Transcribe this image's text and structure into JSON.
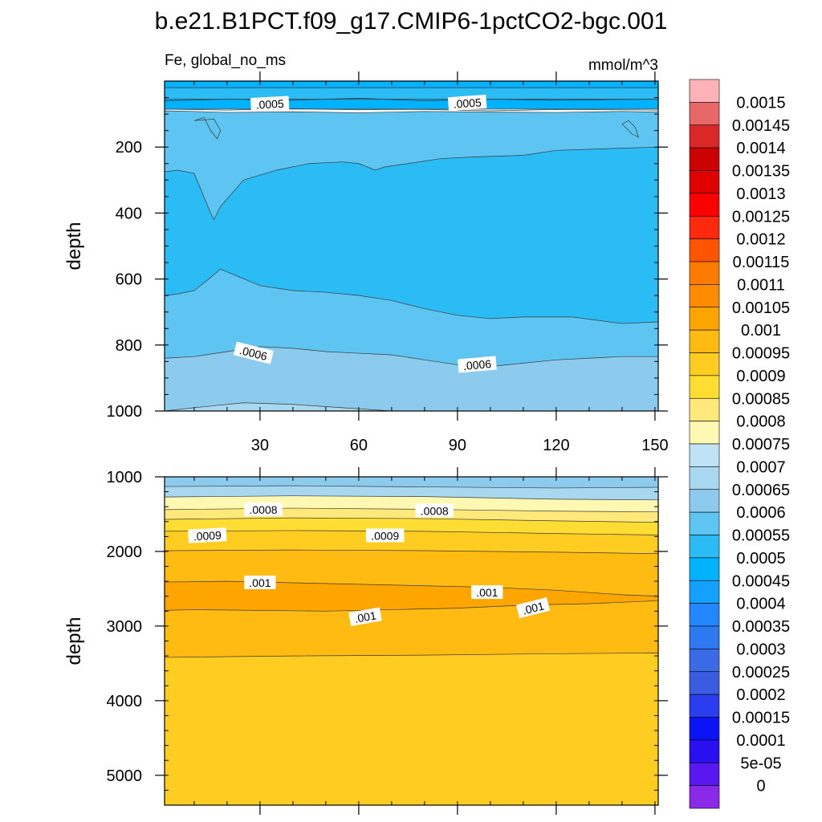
{
  "title": "b.e21.B1PCT.f09_g17.CMIP6-1pctCO2-bgc.001",
  "colors": {
    "band_0": "#9ecae1",
    "band_00075": "#fff8b3",
    "band_0008": "#ffe97a",
    "band_00085": "#ffdd33",
    "band_0009": "#ffcc22",
    "band_00095": "#ffbb11",
    "band_0001": "#ffa500",
    "band_00055": "#5ec4f2",
    "band_0005": "#2bbcf6",
    "band_00045": "#00b2ff",
    "band_00065": "#8ccbee",
    "band_0007": "#a8d8f0",
    "line": "#3a3a3a"
  },
  "chart_data": [
    {
      "type": "heatmap",
      "name": "upper-panel",
      "left_label": "Fe, global_no_ms",
      "right_label": "mmol/m^3",
      "ylabel": "depth",
      "xlabel": "",
      "xlim": [
        1,
        151
      ],
      "ylim": [
        1000,
        0
      ],
      "x_ticks": [
        30,
        60,
        90,
        120,
        150
      ],
      "x_tick_labels": [
        "30",
        "60",
        "90",
        "120",
        "150"
      ],
      "y_ticks": [
        200,
        400,
        600,
        800,
        1000
      ],
      "y_tick_labels": [
        "200",
        "400",
        "600",
        "800",
        "1000"
      ],
      "x_minor_step": 10,
      "y_minor_step": 50,
      "bands": [
        {
          "color": "band_00045",
          "top": [
            [
              1,
              0
            ],
            [
              151,
              0
            ]
          ],
          "bottom": [
            [
              1,
              85
            ],
            [
              151,
              85
            ]
          ]
        },
        {
          "color": "band_0005",
          "top": [
            [
              1,
              20
            ],
            [
              151,
              20
            ]
          ],
          "bottom": [
            [
              1,
              55
            ],
            [
              151,
              55
            ]
          ]
        },
        {
          "color": "band_00055",
          "top": [
            [
              1,
              90
            ],
            [
              10,
              92
            ],
            [
              20,
              95
            ],
            [
              40,
              93
            ],
            [
              60,
              96
            ],
            [
              80,
              92
            ],
            [
              100,
              94
            ],
            [
              120,
              95
            ],
            [
              140,
              92
            ],
            [
              151,
              94
            ]
          ],
          "bottom": [
            [
              1,
              1000
            ],
            [
              151,
              1000
            ]
          ]
        },
        {
          "color": "band_0005",
          "top": [
            [
              1,
              275
            ],
            [
              5,
              270
            ],
            [
              10,
              280
            ],
            [
              15,
              400
            ],
            [
              16,
              420
            ],
            [
              18,
              380
            ],
            [
              25,
              300
            ],
            [
              35,
              270
            ],
            [
              45,
              250
            ],
            [
              55,
              245
            ],
            [
              60,
              250
            ],
            [
              65,
              270
            ],
            [
              68,
              260
            ],
            [
              75,
              250
            ],
            [
              85,
              235
            ],
            [
              95,
              230
            ],
            [
              110,
              225
            ],
            [
              120,
              210
            ],
            [
              135,
              205
            ],
            [
              151,
              200
            ]
          ],
          "bottom": [
            [
              151,
              730
            ],
            [
              140,
              735
            ],
            [
              125,
              715
            ],
            [
              110,
              715
            ],
            [
              100,
              720
            ],
            [
              90,
              710
            ],
            [
              80,
              690
            ],
            [
              70,
              665
            ],
            [
              60,
              650
            ],
            [
              50,
              640
            ],
            [
              40,
              635
            ],
            [
              30,
              620
            ],
            [
              18,
              570
            ],
            [
              15,
              595
            ],
            [
              10,
              635
            ],
            [
              5,
              645
            ],
            [
              1,
              650
            ]
          ]
        },
        {
          "color": "band_00065",
          "top": [
            [
              1,
              840
            ],
            [
              10,
              835
            ],
            [
              20,
              820
            ],
            [
              30,
              805
            ],
            [
              40,
              810
            ],
            [
              50,
              820
            ],
            [
              60,
              825
            ],
            [
              70,
              830
            ],
            [
              80,
              845
            ],
            [
              90,
              860
            ],
            [
              100,
              865
            ],
            [
              110,
              855
            ],
            [
              120,
              845
            ],
            [
              130,
              840
            ],
            [
              140,
              835
            ],
            [
              151,
              835
            ]
          ],
          "bottom": [
            [
              1,
              1000
            ],
            [
              151,
              1000
            ]
          ]
        },
        {
          "color": "band_0007",
          "top": [
            [
              1,
              1000
            ],
            [
              10,
              990
            ],
            [
              25,
              975
            ],
            [
              40,
              980
            ],
            [
              55,
              990
            ],
            [
              70,
              1000
            ]
          ],
          "bottom": [
            [
              1,
              1000
            ],
            [
              70,
              1000
            ]
          ]
        }
      ],
      "lines": [
        [
          [
            1,
            60
          ],
          [
            20,
            55
          ],
          [
            40,
            58
          ],
          [
            60,
            52
          ],
          [
            80,
            60
          ],
          [
            100,
            55
          ],
          [
            120,
            58
          ],
          [
            151,
            55
          ]
        ],
        [
          [
            1,
            85
          ],
          [
            20,
            88
          ],
          [
            40,
            84
          ],
          [
            60,
            87
          ],
          [
            80,
            86
          ],
          [
            100,
            90
          ],
          [
            120,
            86
          ],
          [
            151,
            88
          ]
        ],
        [
          [
            10,
            120
          ],
          [
            13,
            110
          ],
          [
            15,
            150
          ],
          [
            17,
            175
          ],
          [
            18,
            150
          ],
          [
            16,
            115
          ],
          [
            10,
            120
          ]
        ],
        [
          [
            140,
            130
          ],
          [
            142,
            120
          ],
          [
            144,
            140
          ],
          [
            145,
            170
          ],
          [
            143,
            160
          ],
          [
            140,
            130
          ]
        ]
      ],
      "labels": [
        {
          "text": ".0005",
          "x": 33,
          "y": 70,
          "rotate": -3
        },
        {
          "text": ".0005",
          "x": 93,
          "y": 67,
          "rotate": -4
        },
        {
          "text": ".0006",
          "x": 28,
          "y": 825,
          "rotate": 14
        },
        {
          "text": ".0006",
          "x": 96,
          "y": 860,
          "rotate": -5
        }
      ]
    },
    {
      "type": "heatmap",
      "name": "lower-panel",
      "ylabel": "depth",
      "xlabel": "",
      "xlim": [
        1,
        151
      ],
      "ylim": [
        5400,
        1000
      ],
      "x_ticks": [
        30,
        60,
        90,
        120,
        150
      ],
      "x_tick_labels": [
        "",
        "",
        "",
        "",
        ""
      ],
      "y_ticks": [
        1000,
        2000,
        3000,
        4000,
        5000
      ],
      "y_tick_labels": [
        "1000",
        "2000",
        "3000",
        "4000",
        "5000"
      ],
      "x_minor_step": 10,
      "y_minor_step": 200,
      "bands": [
        {
          "color": "band_0007",
          "top": [
            [
              1,
              1000
            ],
            [
              151,
              1000
            ]
          ],
          "bottom": [
            [
              1,
              5400
            ],
            [
              151,
              5400
            ]
          ]
        },
        {
          "color": "band_00065",
          "top": [
            [
              1,
              1000
            ],
            [
              151,
              1000
            ]
          ],
          "bottom": [
            [
              1,
              1130
            ],
            [
              40,
              1120
            ],
            [
              80,
              1135
            ],
            [
              120,
              1150
            ],
            [
              151,
              1140
            ]
          ]
        },
        {
          "color": "band_00075",
          "top": [
            [
              1,
              1270
            ],
            [
              40,
              1255
            ],
            [
              80,
              1265
            ],
            [
              120,
              1300
            ],
            [
              151,
              1310
            ]
          ],
          "bottom": [
            [
              1,
              5400
            ],
            [
              151,
              5400
            ]
          ]
        },
        {
          "color": "band_0008",
          "top": [
            [
              1,
              1440
            ],
            [
              40,
              1420
            ],
            [
              80,
              1435
            ],
            [
              120,
              1460
            ],
            [
              151,
              1470
            ]
          ],
          "bottom": [
            [
              1,
              5400
            ],
            [
              151,
              5400
            ]
          ]
        },
        {
          "color": "band_00085",
          "top": [
            [
              1,
              1570
            ],
            [
              40,
              1550
            ],
            [
              80,
              1560
            ],
            [
              120,
              1590
            ],
            [
              151,
              1610
            ]
          ],
          "bottom": [
            [
              1,
              5400
            ],
            [
              151,
              5400
            ]
          ]
        },
        {
          "color": "band_0009",
          "top": [
            [
              1,
              1730
            ],
            [
              40,
              1720
            ],
            [
              80,
              1730
            ],
            [
              120,
              1760
            ],
            [
              151,
              1780
            ]
          ],
          "bottom": [
            [
              1,
              5400
            ],
            [
              151,
              5400
            ]
          ]
        },
        {
          "color": "band_00095",
          "top": [
            [
              1,
              1990
            ],
            [
              40,
              1980
            ],
            [
              80,
              1990
            ],
            [
              120,
              2010
            ],
            [
              151,
              2030
            ]
          ],
          "bottom": [
            [
              1,
              5400
            ],
            [
              151,
              5400
            ]
          ]
        },
        {
          "color": "band_0001",
          "top": [
            [
              1,
              2410
            ],
            [
              20,
              2400
            ],
            [
              40,
              2420
            ],
            [
              60,
              2440
            ],
            [
              80,
              2460
            ],
            [
              100,
              2480
            ],
            [
              120,
              2520
            ],
            [
              140,
              2580
            ],
            [
              151,
              2600
            ]
          ],
          "bottom": [
            [
              151,
              2660
            ],
            [
              130,
              2700
            ],
            [
              110,
              2720
            ],
            [
              90,
              2760
            ],
            [
              70,
              2780
            ],
            [
              50,
              2800
            ],
            [
              30,
              2790
            ],
            [
              10,
              2780
            ],
            [
              1,
              2790
            ]
          ]
        },
        {
          "color": "band_0009",
          "top": [
            [
              1,
              3420
            ],
            [
              40,
              3400
            ],
            [
              80,
              3390
            ],
            [
              120,
              3370
            ],
            [
              151,
              3360
            ]
          ],
          "bottom": [
            [
              1,
              5400
            ],
            [
              151,
              5400
            ]
          ]
        }
      ],
      "lines": [],
      "labels": [
        {
          "text": ".0008",
          "x": 31,
          "y": 1440,
          "rotate": 0
        },
        {
          "text": ".0008",
          "x": 83,
          "y": 1455,
          "rotate": 0
        },
        {
          "text": ".0009",
          "x": 14,
          "y": 1790,
          "rotate": -3
        },
        {
          "text": ".0009",
          "x": 68,
          "y": 1790,
          "rotate": 0
        },
        {
          "text": ".001",
          "x": 30,
          "y": 2420,
          "rotate": 0
        },
        {
          "text": ".001",
          "x": 99,
          "y": 2550,
          "rotate": 0
        },
        {
          "text": ".001",
          "x": 62,
          "y": 2880,
          "rotate": -10
        },
        {
          "text": ".001",
          "x": 113,
          "y": 2760,
          "rotate": -14
        }
      ]
    }
  ],
  "colorbar": {
    "levels": [
      "0.0015",
      "0.00145",
      "0.0014",
      "0.00135",
      "0.0013",
      "0.00125",
      "0.0012",
      "0.00115",
      "0.0011",
      "0.00105",
      "0.001",
      "0.00095",
      "0.0009",
      "0.00085",
      "0.0008",
      "0.00075",
      "0.0007",
      "0.00065",
      "0.0006",
      "0.00055",
      "0.0005",
      "0.00045",
      "0.0004",
      "0.00035",
      "0.0003",
      "0.00025",
      "0.0002",
      "0.00015",
      "0.0001",
      "5e-05",
      "0"
    ],
    "colors": [
      "#ffb3b8",
      "#e86868",
      "#d92828",
      "#cc0000",
      "#e00000",
      "#ff0000",
      "#ff2a0d",
      "#ff5500",
      "#ff7a00",
      "#ff8c00",
      "#ffa500",
      "#ffbb11",
      "#ffcc22",
      "#ffdd33",
      "#ffe97a",
      "#fff8b3",
      "#bfe3f5",
      "#a8d8f0",
      "#8ccbee",
      "#5ec4f2",
      "#2bbcf6",
      "#00b2ff",
      "#14a0ff",
      "#2388ff",
      "#2e78f0",
      "#3a6ae6",
      "#3a5ce0",
      "#2a3ef0",
      "#0a14f5",
      "#2a10f0",
      "#5a18f0",
      "#8a2ae8"
    ]
  }
}
